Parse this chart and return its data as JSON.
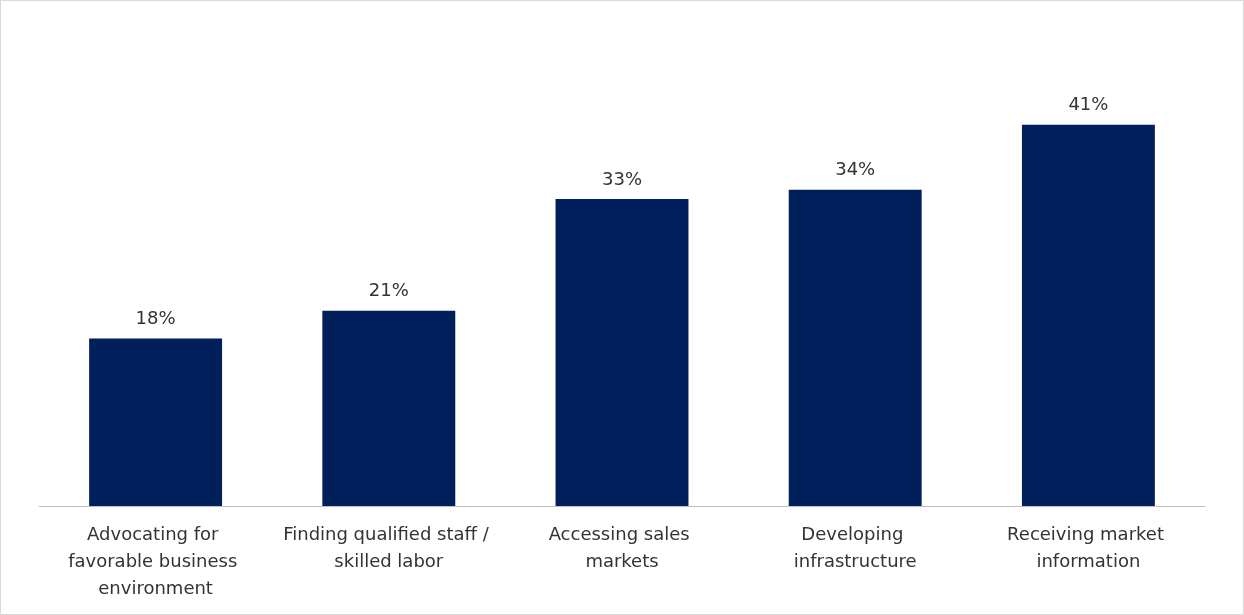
{
  "chart_data": {
    "type": "bar",
    "categories": [
      "Advocating for favorable business environment",
      "Finding qualified staff / skilled labor",
      "Accessing sales markets",
      "Developing infrastructure",
      "Receiving market information"
    ],
    "values": [
      18,
      21,
      33,
      34,
      41
    ],
    "value_labels": [
      "18%",
      "21%",
      "33%",
      "34%",
      "41%"
    ],
    "color": "#001f5b",
    "grid": false
  }
}
